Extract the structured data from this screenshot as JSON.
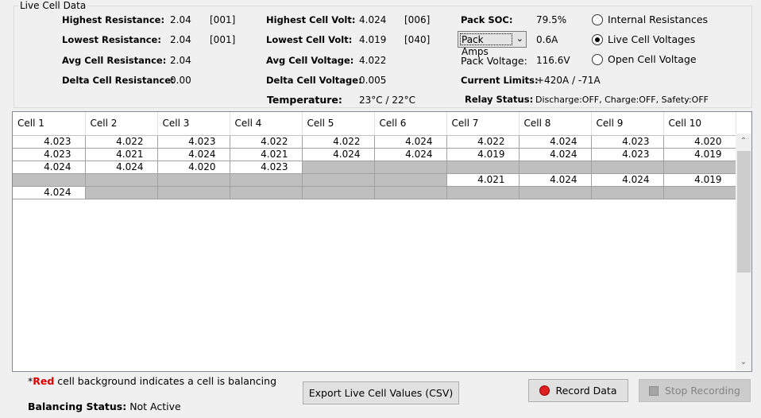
{
  "group_title": "Live Cell Data",
  "stats": {
    "highest_resistance": {
      "label": "Highest Resistance:",
      "value": "2.04",
      "cell": "[001]"
    },
    "lowest_resistance": {
      "label": "Lowest Resistance:",
      "value": "2.04",
      "cell": "[001]"
    },
    "avg_resistance": {
      "label": "Avg Cell Resistance:",
      "value": "2.04"
    },
    "delta_resistance": {
      "label": "Delta Cell Resistance:",
      "value": "0.00"
    },
    "highest_volt": {
      "label": "Highest Cell Volt:",
      "value": "4.024",
      "cell": "[006]"
    },
    "lowest_volt": {
      "label": "Lowest Cell Volt:",
      "value": "4.019",
      "cell": "[040]"
    },
    "avg_voltage": {
      "label": "Avg Cell Voltage:",
      "value": "4.022"
    },
    "delta_voltage": {
      "label": "Delta Cell Voltage:",
      "value": "0.005"
    },
    "temperature": {
      "label": "Temperature:",
      "value": "23°C / 22°C"
    },
    "pack_soc": {
      "label": "Pack SOC:",
      "value": "79.5%"
    },
    "pack_amps": {
      "selected": "Pack Amps",
      "value": "0.6A"
    },
    "pack_voltage": {
      "label": "Pack Voltage:",
      "value": "116.6V"
    },
    "current_limits": {
      "label": "Current Limits:",
      "value": "+420A / -71A"
    },
    "relay_status": {
      "label": "Relay Status:",
      "value": "Discharge:OFF,  Charge:OFF,  Safety:OFF"
    }
  },
  "view_options": [
    {
      "label": "Internal Resistances",
      "selected": false
    },
    {
      "label": "Live Cell Voltages",
      "selected": true
    },
    {
      "label": "Open Cell Voltage",
      "selected": false
    }
  ],
  "grid": {
    "columns": [
      "Cell 1",
      "Cell 2",
      "Cell 3",
      "Cell 4",
      "Cell 5",
      "Cell 6",
      "Cell 7",
      "Cell 8",
      "Cell 9",
      "Cell 10"
    ],
    "rows": [
      [
        "4.023",
        "4.022",
        "4.023",
        "4.022",
        "4.022",
        "4.024",
        "4.022",
        "4.024",
        "4.023",
        "4.020"
      ],
      [
        "4.023",
        "4.021",
        "4.024",
        "4.021",
        "4.024",
        "4.024",
        "4.019",
        "4.024",
        "4.023",
        "4.019"
      ],
      [
        "4.024",
        "4.024",
        "4.020",
        "4.023",
        "",
        "",
        "",
        "",
        "",
        ""
      ],
      [
        "",
        "",
        "",
        "",
        "",
        "",
        "4.021",
        "4.024",
        "4.024",
        "4.019"
      ],
      [
        "4.024",
        "",
        "",
        "",
        "",
        "",
        "",
        "",
        "",
        ""
      ]
    ]
  },
  "note": {
    "prefix": "*",
    "red_word": "Red",
    "text": " cell background indicates a cell is balancing"
  },
  "balancing": {
    "label": "Balancing Status:",
    "value": "Not Active"
  },
  "buttons": {
    "export": "Export Live Cell Values (CSV)",
    "record": "Record Data",
    "stop": "Stop Recording"
  },
  "colors": {
    "balancing": "#e00000",
    "record_dot": "#e02020",
    "empty_cell": "#bfbfbf"
  }
}
